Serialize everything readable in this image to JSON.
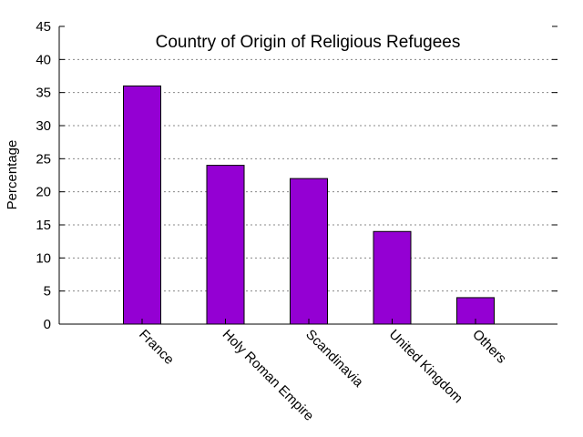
{
  "chart_data": {
    "type": "bar",
    "title": "Country of Origin of Religious Refugees",
    "xlabel": "",
    "ylabel": "Percentage",
    "categories": [
      "France",
      "Holy Roman Empire",
      "Scandinavia",
      "United Kingdom",
      "Others"
    ],
    "values": [
      36,
      24,
      22,
      14,
      4
    ],
    "ylim": [
      0,
      45
    ],
    "yticks": [
      "0",
      "5",
      "10",
      "15",
      "20",
      "25",
      "30",
      "35",
      "40",
      "45"
    ],
    "grid": true,
    "bar_color": "#9400d3",
    "legend": "none"
  }
}
